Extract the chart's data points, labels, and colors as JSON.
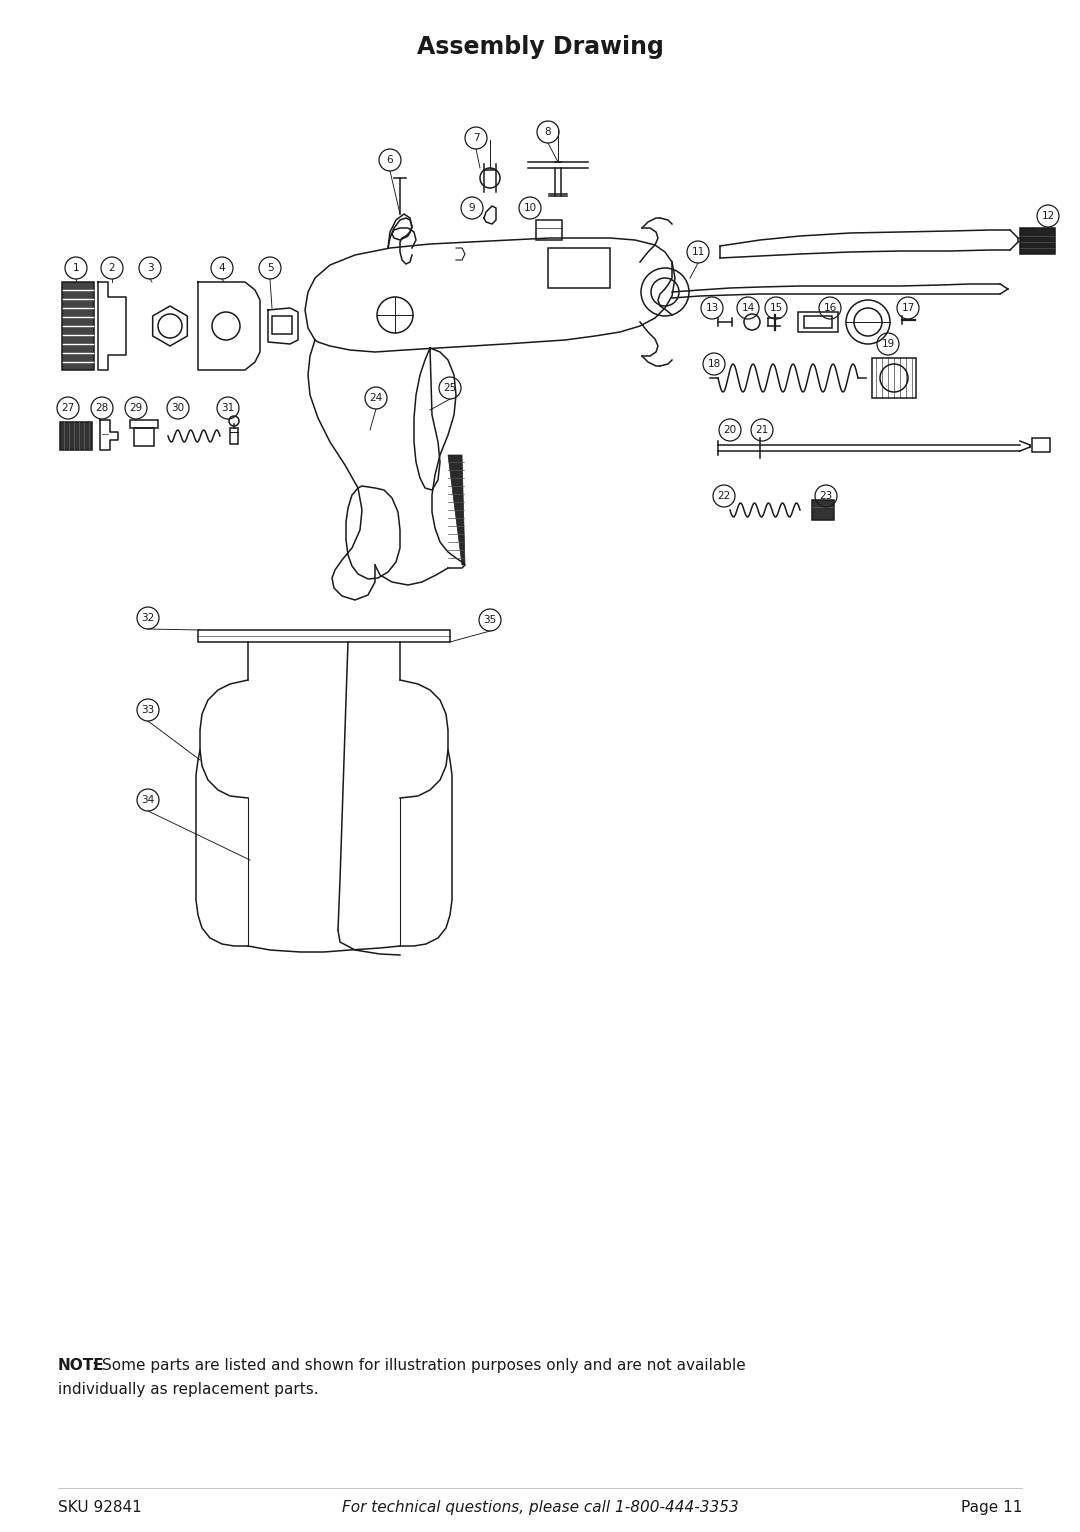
{
  "title": "Assembly Drawing",
  "title_fontsize": 17,
  "title_fontweight": "bold",
  "background_color": "#ffffff",
  "text_color": "#1a1a1a",
  "note_bold": "NOTE",
  "note_rest": ": Some parts are listed and shown for illustration purposes only and are not available",
  "note_line2": "individually as replacement parts.",
  "footer_sku": "SKU 92841",
  "footer_middle": "For technical questions, please call 1-800-444-3353",
  "footer_page": "Page 11",
  "footer_fontsize": 11,
  "note_fontsize": 11,
  "line_color": "#1a1a1a",
  "lw": 1.1
}
